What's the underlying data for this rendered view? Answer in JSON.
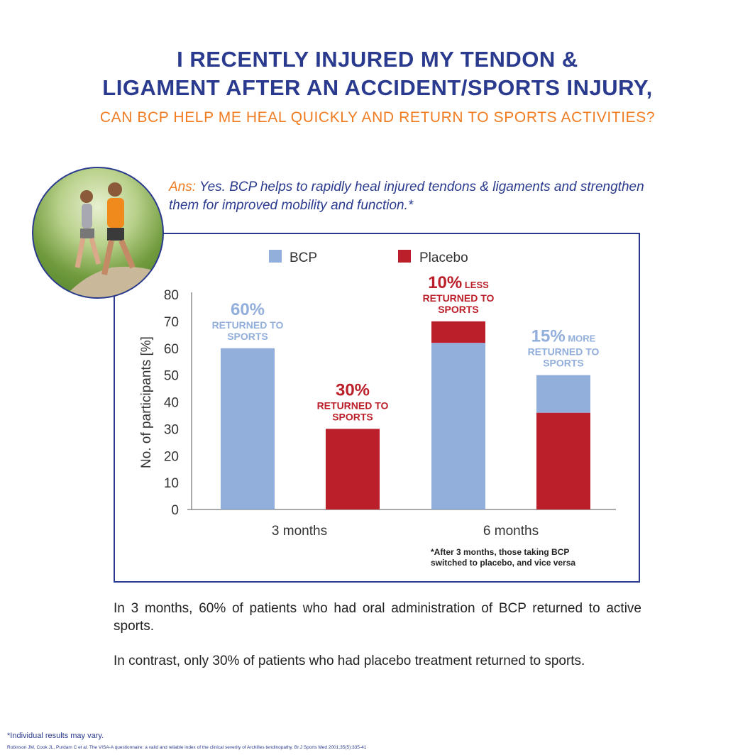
{
  "header": {
    "title_line1": "I RECENTLY INJURED MY TENDON &",
    "title_line2": "LIGAMENT AFTER AN ACCIDENT/SPORTS INJURY,",
    "subtitle": "CAN BCP HELP ME HEAL QUICKLY AND RETURN TO SPORTS ACTIVITIES?"
  },
  "answer": {
    "lead": "Ans:",
    "text": " Yes. BCP helps to rapidly heal injured tendons & ligaments and strengthen them for improved mobility and function.*"
  },
  "colors": {
    "BCP": "#92aedb",
    "Placebo": "#bb1f29",
    "navy": "#2a3a8e",
    "orange": "#f07c22"
  },
  "chart_data": {
    "type": "stacked bar",
    "ylabel": "No. of participants [%]",
    "ylim": [
      0,
      80
    ],
    "yticks": [
      0,
      10,
      20,
      30,
      40,
      50,
      60,
      70,
      80
    ],
    "legend": [
      {
        "name": "BCP"
      },
      {
        "name": "Placebo"
      }
    ],
    "legend_position": "top",
    "categories": [
      "3 months",
      "6 months"
    ],
    "bars": [
      {
        "category": "3 months",
        "segments": [
          {
            "series": "BCP",
            "value": 60
          }
        ],
        "annotation": {
          "big": "60%",
          "small": "",
          "line2": "RETURNED TO",
          "line3": "SPORTS",
          "color": "BCP"
        }
      },
      {
        "category": "3 months",
        "segments": [
          {
            "series": "Placebo",
            "value": 30
          }
        ],
        "annotation": {
          "big": "30%",
          "small": "",
          "line2": "RETURNED TO",
          "line3": "SPORTS",
          "color": "Placebo"
        }
      },
      {
        "category": "6 months",
        "segments": [
          {
            "series": "BCP",
            "value": 62
          },
          {
            "series": "Placebo",
            "value": 8
          }
        ],
        "annotation": {
          "big": "10%",
          "small": " LESS",
          "line2": "RETURNED TO",
          "line3": "SPORTS",
          "color": "Placebo"
        }
      },
      {
        "category": "6 months",
        "segments": [
          {
            "series": "Placebo",
            "value": 36
          },
          {
            "series": "BCP",
            "value": 14
          }
        ],
        "annotation": {
          "big": "15%",
          "small": " MORE",
          "line2": "RETURNED TO",
          "line3": "SPORTS",
          "color": "BCP"
        }
      }
    ],
    "note_line1": "*After 3 months, those taking BCP",
    "note_line2": "switched to placebo, and vice versa",
    "grid": false
  },
  "body": {
    "p1": "In 3 months, 60% of patients who had oral administration of BCP returned to active sports.",
    "p2": "In contrast, only 30% of patients who had placebo treatment returned to sports."
  },
  "footer": {
    "disclaimer": "*Individual results may vary.",
    "reference": "Robinson JM, Cook JL, Purdam C et al. The VISA-A questionnaire: a valid and reliable index of the clinical severity of Archilles tendinopathy. Br.J Sports Med 2001;35(5):335-41"
  }
}
